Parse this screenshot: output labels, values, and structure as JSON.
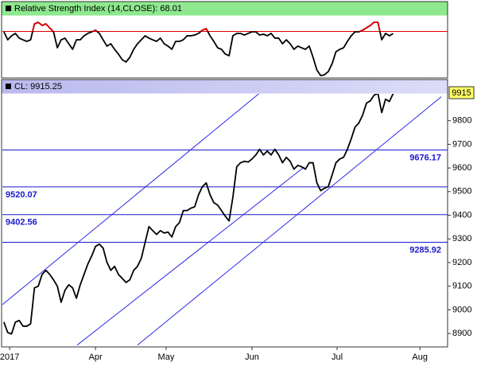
{
  "chart_data": [
    {
      "type": "line",
      "title": "Relative Strength Index (14,CLOSE): 68.01",
      "x": [
        0,
        1,
        2,
        3,
        4,
        5,
        6,
        7,
        8,
        9,
        10,
        11,
        12,
        13,
        14,
        15,
        16,
        17,
        18,
        19,
        20,
        21,
        22,
        23,
        24,
        25,
        26,
        27,
        28,
        29,
        30,
        31,
        32,
        33,
        34,
        35,
        36,
        37,
        38,
        39,
        40,
        41,
        42,
        43,
        44,
        45,
        46,
        47,
        48,
        49,
        50,
        51,
        52,
        53,
        54,
        55,
        56,
        57,
        58,
        59,
        60,
        61,
        62,
        63,
        64,
        65,
        66,
        67,
        68,
        69,
        70,
        71,
        72,
        73,
        74,
        75,
        76,
        77,
        78,
        79,
        80,
        81,
        82,
        83,
        84,
        85,
        86,
        87,
        88,
        89,
        90,
        91,
        92,
        93,
        94,
        95,
        96,
        97,
        98,
        99,
        100,
        101,
        102
      ],
      "values": [
        69.6,
        61.9,
        65.8,
        68.1,
        63.5,
        61.9,
        60.4,
        61.9,
        77.3,
        78.8,
        75.8,
        77.3,
        73.5,
        69.6,
        54.2,
        61.9,
        63.5,
        58.1,
        52.7,
        61.9,
        61.9,
        65.8,
        68.1,
        69.6,
        71.2,
        68.1,
        61.9,
        55.8,
        58.1,
        52.7,
        48.1,
        42.7,
        40.4,
        45,
        52.7,
        58.1,
        61.9,
        65.8,
        63.5,
        61.9,
        60.4,
        63.5,
        58.1,
        55.8,
        52.7,
        60.4,
        60.4,
        61.9,
        65.8,
        65.8,
        66.5,
        68.1,
        71.2,
        72.7,
        65.8,
        60.4,
        54.2,
        52.7,
        48.1,
        46.5,
        65.8,
        68.1,
        68.1,
        66.5,
        68.1,
        69.6,
        69.6,
        66.5,
        67.3,
        65.8,
        68.1,
        63.5,
        63.5,
        58.1,
        61.9,
        58.1,
        52.7,
        55.8,
        54.2,
        52.7,
        55.8,
        45,
        32.7,
        27.3,
        28.1,
        31.2,
        38.8,
        50.4,
        52.7,
        54.2,
        60.4,
        65.8,
        69.6,
        69.6,
        71.2,
        73.5,
        75.8,
        78.8,
        78.8,
        61.9,
        68.1,
        65.8,
        68
      ],
      "color": "#000000",
      "overbought_level": 70,
      "overbought_color": "#e00000",
      "xlim": [
        -0.4,
        116.25
      ],
      "ylim": [
        25,
        85
      ]
    },
    {
      "type": "line",
      "title": "CL: 9915.25",
      "price_tag": "9915",
      "x": [
        0,
        1,
        2,
        3,
        4,
        5,
        6,
        7,
        8,
        9,
        10,
        11,
        12,
        13,
        14,
        15,
        16,
        17,
        18,
        19,
        20,
        21,
        22,
        23,
        24,
        25,
        26,
        27,
        28,
        29,
        30,
        31,
        32,
        33,
        34,
        35,
        36,
        37,
        38,
        39,
        40,
        41,
        42,
        43,
        44,
        45,
        46,
        47,
        48,
        49,
        50,
        51,
        52,
        53,
        54,
        55,
        56,
        57,
        58,
        59,
        60,
        61,
        62,
        63,
        64,
        65,
        66,
        67,
        68,
        69,
        70,
        71,
        72,
        73,
        74,
        75,
        76,
        77,
        78,
        79,
        80,
        81,
        82,
        83,
        84,
        85,
        86,
        87,
        88,
        89,
        90,
        91,
        92,
        93,
        94,
        95,
        96,
        97,
        98,
        99,
        100,
        101,
        102
      ],
      "values": [
        8948,
        8904,
        8898,
        8948,
        8955,
        8931,
        8931,
        8941,
        9093,
        9100,
        9150,
        9167,
        9150,
        9127,
        9100,
        9032,
        9083,
        9106,
        9093,
        9049,
        9106,
        9150,
        9194,
        9228,
        9268,
        9278,
        9261,
        9201,
        9167,
        9184,
        9150,
        9133,
        9116,
        9127,
        9167,
        9184,
        9218,
        9285,
        9352,
        9335,
        9319,
        9335,
        9325,
        9329,
        9308,
        9352,
        9369,
        9420,
        9420,
        9430,
        9436,
        9487,
        9521,
        9537,
        9487,
        9453,
        9443,
        9420,
        9396,
        9376,
        9477,
        9605,
        9622,
        9628,
        9625,
        9638,
        9655,
        9679,
        9655,
        9672,
        9655,
        9679,
        9655,
        9622,
        9645,
        9628,
        9595,
        9611,
        9605,
        9595,
        9622,
        9622,
        9537,
        9504,
        9514,
        9521,
        9571,
        9622,
        9638,
        9645,
        9679,
        9723,
        9773,
        9790,
        9824,
        9874,
        9884,
        9908,
        9915,
        9834,
        9891,
        9881,
        9915
      ],
      "color": "#000000",
      "xlim": [
        -0.4,
        116.25
      ],
      "ylim": [
        8850,
        9920
      ],
      "xticks": [
        {
          "value": 1.5,
          "label": "2017"
        },
        {
          "value": 24,
          "label": "Apr"
        },
        {
          "value": 42.5,
          "label": "May"
        },
        {
          "value": 65,
          "label": "Jun"
        },
        {
          "value": 87.3,
          "label": "Jul"
        },
        {
          "value": 109,
          "label": "Aug"
        }
      ],
      "yticks": [
        8900,
        9000,
        9100,
        9200,
        9300,
        9400,
        9500,
        9600,
        9700,
        9800
      ],
      "levels": [
        {
          "value": 9676.17,
          "label_side": "right"
        },
        {
          "value": 9520.07,
          "label_side": "left"
        },
        {
          "value": 9402.56,
          "label_side": "left"
        },
        {
          "value": 9285.92,
          "label_side": "right"
        }
      ],
      "level_color": "#1a1acc",
      "trendlines": [
        {
          "x": [
            -0.4,
            67.1
          ],
          "y": [
            9022,
            9918
          ]
        },
        {
          "x": [
            19.2,
            78.75
          ],
          "y": [
            8851,
            9605
          ]
        },
        {
          "x": [
            35,
            114.6
          ],
          "y": [
            8851,
            9901
          ]
        }
      ],
      "trend_color": "#2a2ae8"
    }
  ]
}
